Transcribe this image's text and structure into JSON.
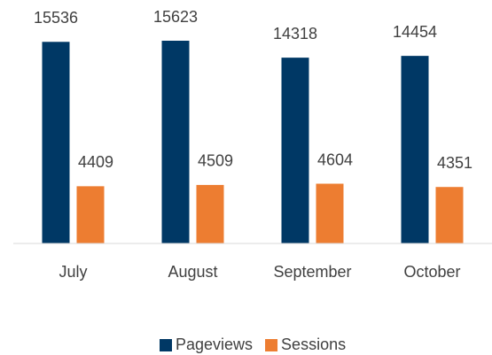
{
  "chart_data": {
    "type": "bar",
    "categories": [
      "July",
      "August",
      "September",
      "October"
    ],
    "series": [
      {
        "name": "Pageviews",
        "color": "#003865",
        "values": [
          15536,
          15623,
          14318,
          14454
        ]
      },
      {
        "name": "Sessions",
        "color": "#ed7d31",
        "values": [
          4409,
          4509,
          4604,
          4351
        ]
      }
    ],
    "legend": "bottom"
  }
}
